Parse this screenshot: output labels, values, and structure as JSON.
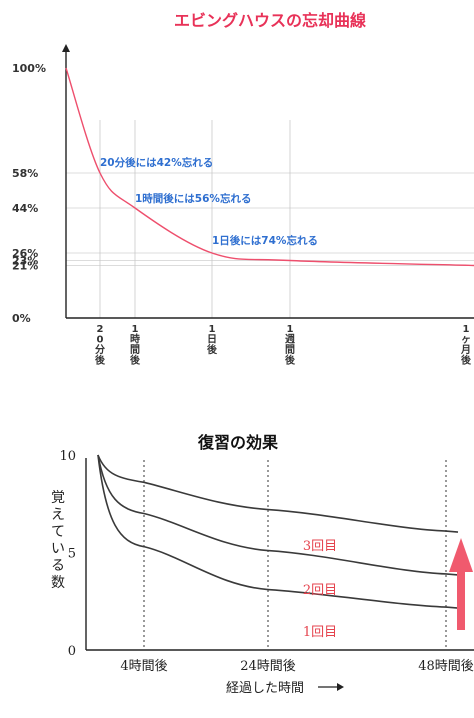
{
  "chart_data": [
    {
      "type": "line",
      "title": "エビングハウスの忘却曲線",
      "y_ticks": [
        "100%",
        "58%",
        "44%",
        "26%",
        "23%",
        "21%",
        "0%"
      ],
      "x_ticks": [
        "20分後",
        "1時間後",
        "1日後",
        "1週間後",
        "1ヶ月後"
      ],
      "series": [
        {
          "x": [
            0,
            1,
            2,
            3,
            4,
            5
          ],
          "y": [
            100,
            58,
            44,
            26,
            23,
            21
          ]
        }
      ],
      "ylim": [
        0,
        100
      ],
      "annotations": [
        "20分後には42%忘れる",
        "1時間後には56%忘れる",
        "1日後には74%忘れる"
      ],
      "grid": true,
      "colors": {
        "curve": "#ee4f6d",
        "annotation": "#2f6fd0",
        "title": "#e83258"
      }
    },
    {
      "type": "line",
      "title": "復習の効果",
      "ylabel": "覚えている数",
      "y_ticks": [
        "10",
        "5",
        "0"
      ],
      "x_ticks": [
        "4時間後",
        "24時間後",
        "48時間後"
      ],
      "xlabel": "経過した時間",
      "ylim": [
        0,
        10
      ],
      "x": [
        0,
        4,
        24,
        48
      ],
      "series": [
        {
          "name": "3回目",
          "values": [
            10,
            8.6,
            7.2,
            6.1
          ]
        },
        {
          "name": "2回目",
          "values": [
            10,
            7.0,
            5.1,
            3.9
          ]
        },
        {
          "name": "1回目",
          "values": [
            10,
            5.3,
            3.1,
            2.2
          ]
        }
      ],
      "colors": {
        "line": "#3a3a3a",
        "label": "#e5434e",
        "arrow": "#f05a6e"
      }
    }
  ]
}
